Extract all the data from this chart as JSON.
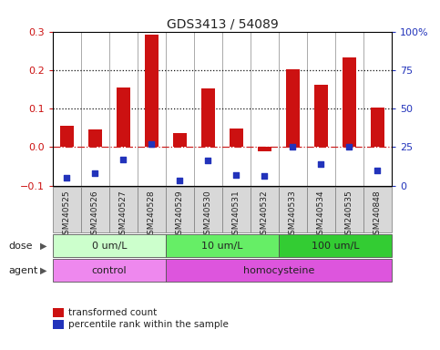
{
  "title": "GDS3413 / 54089",
  "samples": [
    "GSM240525",
    "GSM240526",
    "GSM240527",
    "GSM240528",
    "GSM240529",
    "GSM240530",
    "GSM240531",
    "GSM240532",
    "GSM240533",
    "GSM240534",
    "GSM240535",
    "GSM240848"
  ],
  "transformed_count": [
    0.055,
    0.045,
    0.155,
    0.293,
    0.035,
    0.152,
    0.047,
    -0.01,
    0.202,
    0.162,
    0.232,
    0.102
  ],
  "percentile_rank_values": [
    5,
    8,
    17,
    27,
    3,
    16,
    7,
    6,
    25,
    14,
    25,
    10
  ],
  "ylim_left": [
    -0.1,
    0.3
  ],
  "ylim_right": [
    0,
    100
  ],
  "yticks_left": [
    -0.1,
    0.0,
    0.1,
    0.2,
    0.3
  ],
  "yticks_right": [
    0,
    25,
    50,
    75,
    100
  ],
  "hline_dotted": [
    0.1,
    0.2
  ],
  "hline_dashdot": [
    0.0
  ],
  "bar_color": "#cc1111",
  "blue_color": "#2233bb",
  "dose_groups": [
    {
      "label": "0 um/L",
      "start": 0,
      "end": 4,
      "color": "#ccffcc"
    },
    {
      "label": "10 um/L",
      "start": 4,
      "end": 8,
      "color": "#66ee66"
    },
    {
      "label": "100 um/L",
      "start": 8,
      "end": 12,
      "color": "#33cc33"
    }
  ],
  "agent_groups": [
    {
      "label": "control",
      "start": 0,
      "end": 4,
      "color": "#ee88ee"
    },
    {
      "label": "homocysteine",
      "start": 4,
      "end": 12,
      "color": "#dd55dd"
    }
  ],
  "dose_label": "dose",
  "agent_label": "agent",
  "legend_items": [
    {
      "label": "transformed count",
      "color": "#cc1111"
    },
    {
      "label": "percentile rank within the sample",
      "color": "#2233bb"
    }
  ],
  "bg_color": "#ffffff",
  "left_tick_color": "#cc1111",
  "right_tick_color": "#2233bb",
  "zero_line_color": "#cc2222",
  "dotted_line_color": "#111111",
  "spine_color": "#888888",
  "sample_box_color": "#d8d8d8",
  "sample_box_edge": "#888888"
}
